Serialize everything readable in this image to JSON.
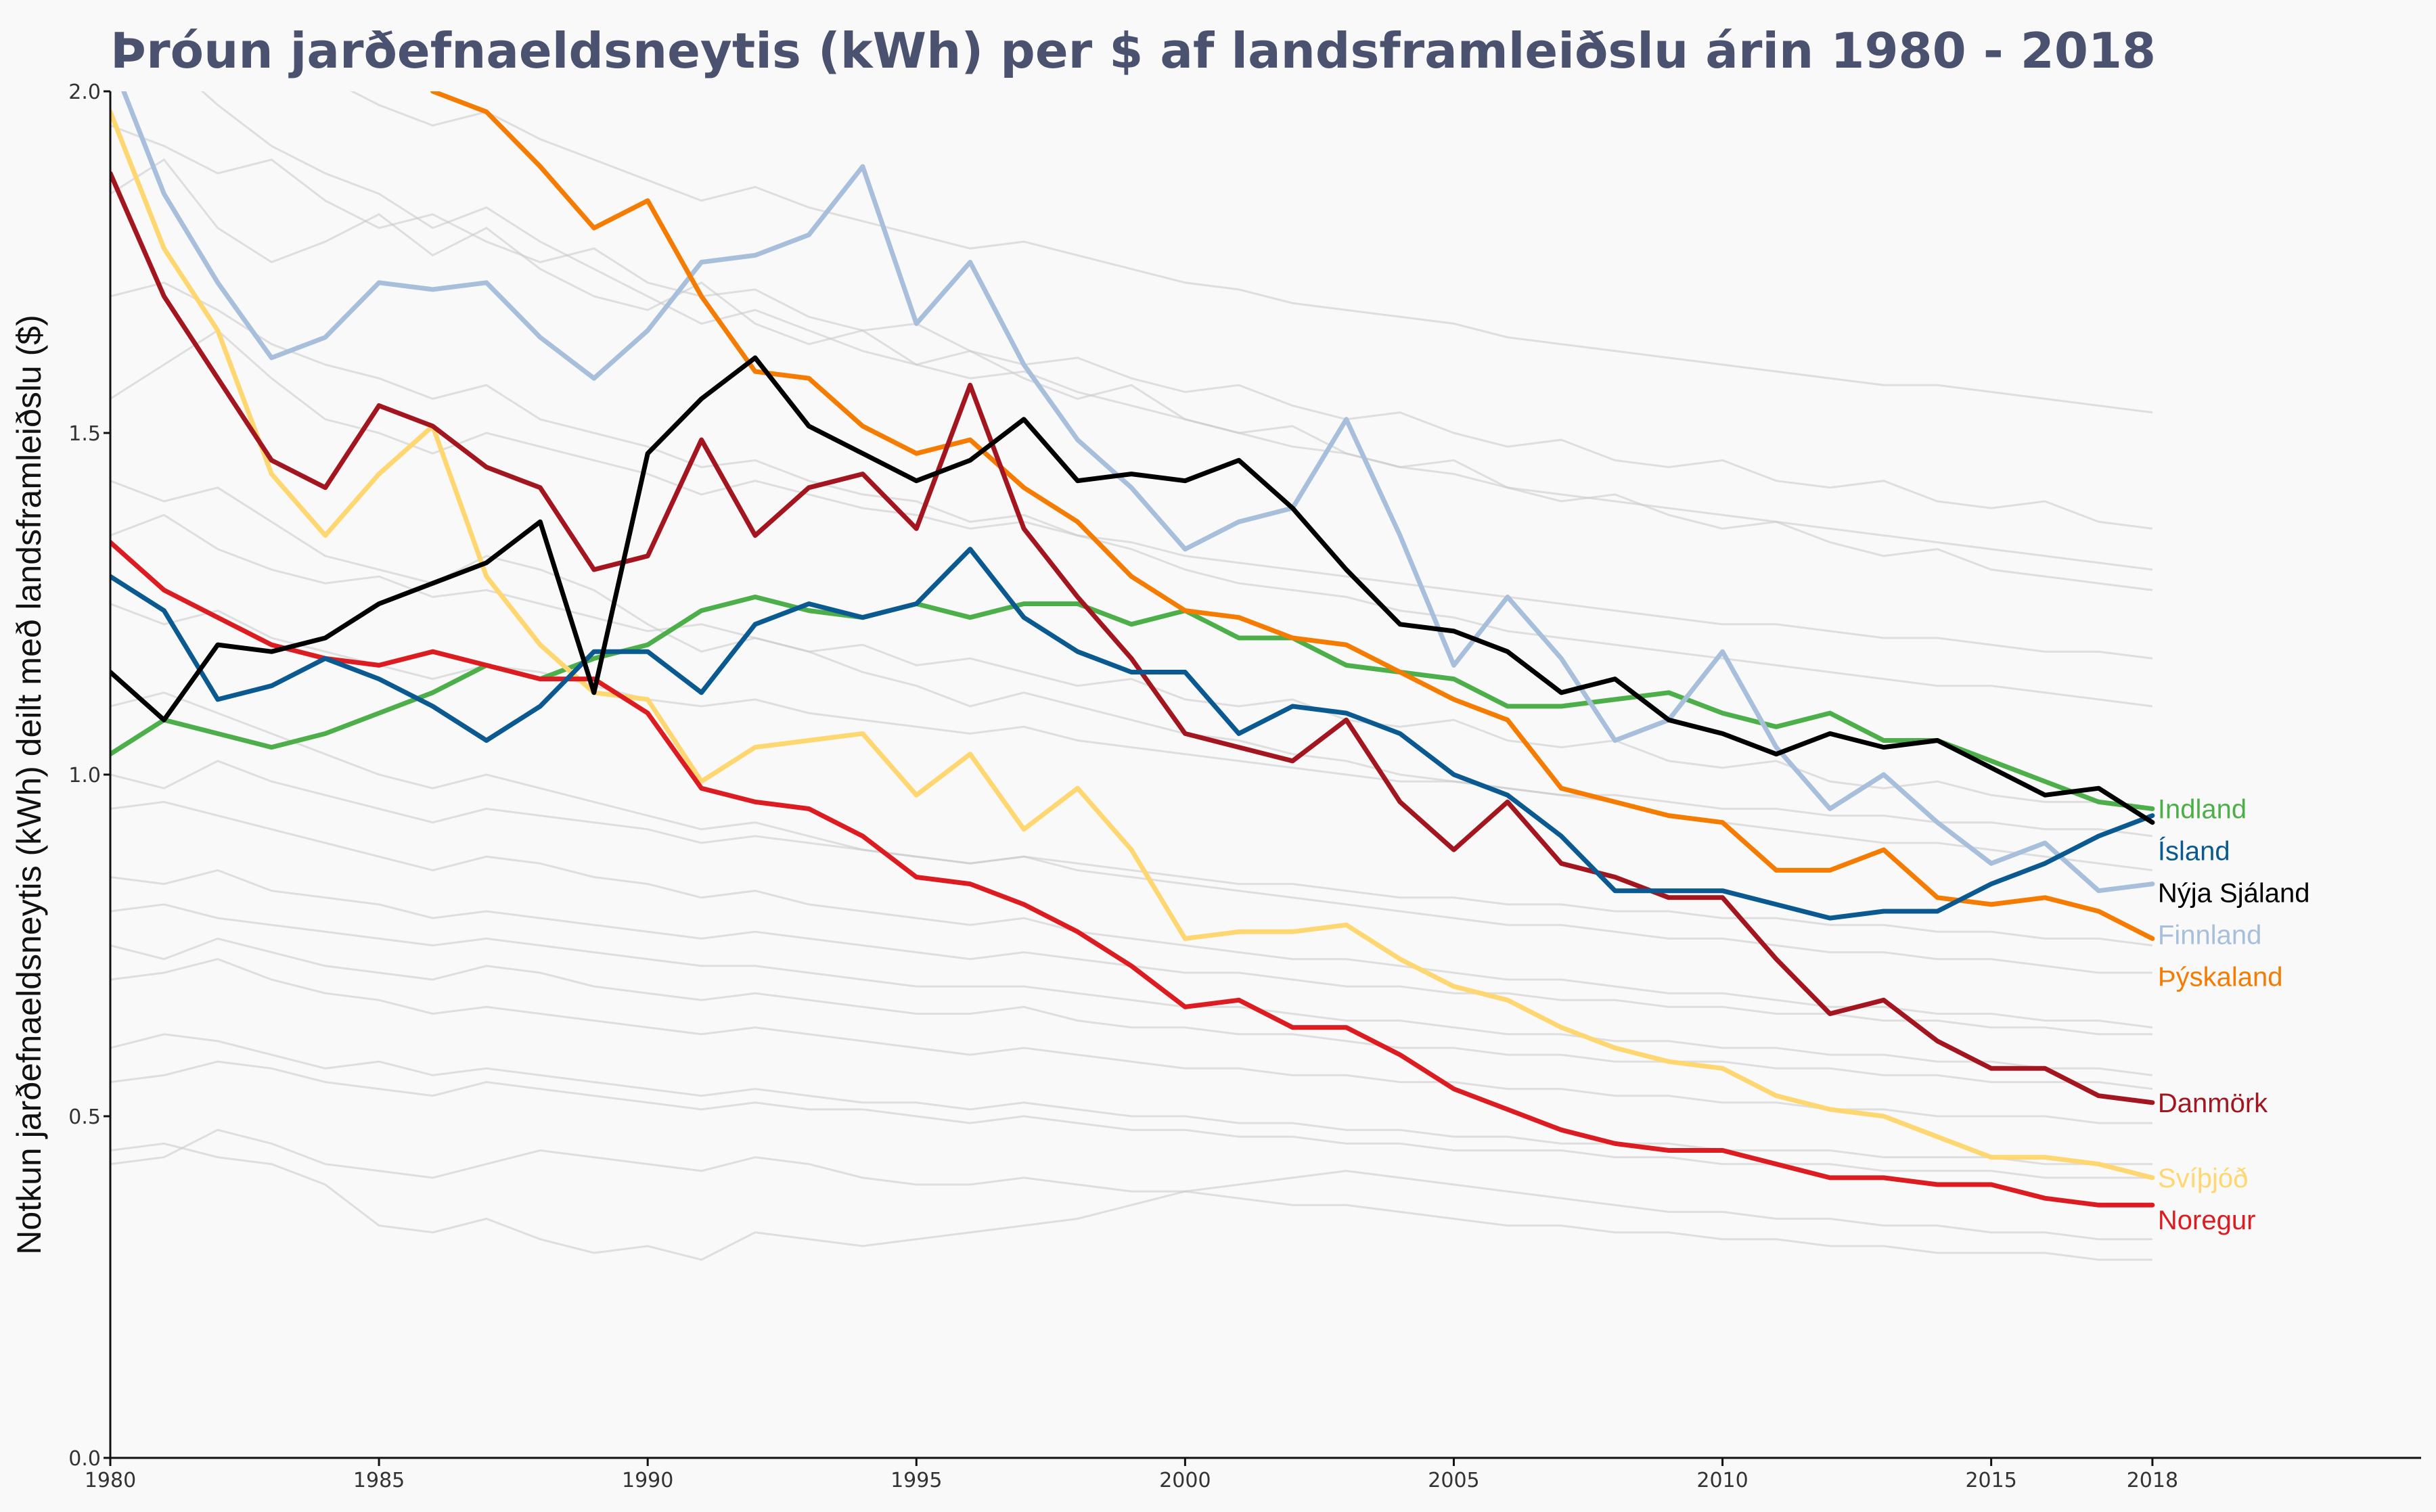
{
  "chart_data": {
    "type": "line",
    "title": "Þróun jarðefnaeldsneytis (kWh) per $ af landsframleiðslu árin 1980 - 2018",
    "ylabel": "Notkun jarðefnaeldsneytis (kWh) deilt með landsframleiðslu ($)",
    "xlabel": "",
    "xlim": [
      1980,
      2023
    ],
    "ylim": [
      0,
      2.0
    ],
    "x_ticks": [
      1980,
      1985,
      1990,
      1995,
      2000,
      2005,
      2010,
      2015,
      2018
    ],
    "y_ticks": [
      {
        "value": 0,
        "label": "0.0"
      },
      {
        "value": 0.5,
        "label": "0.5"
      },
      {
        "value": 1.0,
        "label": "1.0"
      },
      {
        "value": 1.5,
        "label": "1.5"
      },
      {
        "value": 2.0,
        "label": "2.0"
      }
    ],
    "grid": false,
    "x": [
      1980,
      1981,
      1982,
      1983,
      1984,
      1985,
      1986,
      1987,
      1988,
      1989,
      1990,
      1991,
      1992,
      1993,
      1994,
      1995,
      1996,
      1997,
      1998,
      1999,
      2000,
      2001,
      2002,
      2003,
      2004,
      2005,
      2006,
      2007,
      2008,
      2009,
      2010,
      2011,
      2012,
      2013,
      2014,
      2015,
      2016,
      2017,
      2018
    ],
    "series": [
      {
        "name": "Indland",
        "color": "#4daf4a",
        "values": [
          1.03,
          1.08,
          1.06,
          1.04,
          1.06,
          1.09,
          1.12,
          1.16,
          1.14,
          1.17,
          1.19,
          1.24,
          1.26,
          1.24,
          1.23,
          1.25,
          1.23,
          1.25,
          1.25,
          1.22,
          1.24,
          1.2,
          1.2,
          1.16,
          1.15,
          1.14,
          1.1,
          1.1,
          1.11,
          1.12,
          1.09,
          1.07,
          1.09,
          1.05,
          1.05,
          1.02,
          0.99,
          0.96,
          0.95
        ]
      },
      {
        "name": "Ísland",
        "color": "#0a5a91",
        "values": [
          1.29,
          1.24,
          1.11,
          1.13,
          1.17,
          1.14,
          1.1,
          1.05,
          1.1,
          1.18,
          1.18,
          1.12,
          1.22,
          1.25,
          1.23,
          1.25,
          1.33,
          1.23,
          1.18,
          1.15,
          1.15,
          1.06,
          1.1,
          1.09,
          1.06,
          1.0,
          0.97,
          0.91,
          0.83,
          0.83,
          0.83,
          0.81,
          0.79,
          0.8,
          0.8,
          0.84,
          0.87,
          0.91,
          0.94
        ]
      },
      {
        "name": "Nýja Sjáland",
        "color": "#000000",
        "values": [
          1.15,
          1.08,
          1.19,
          1.18,
          1.2,
          1.25,
          1.28,
          1.31,
          1.37,
          1.12,
          1.47,
          1.55,
          1.61,
          1.51,
          1.47,
          1.43,
          1.46,
          1.52,
          1.43,
          1.44,
          1.43,
          1.46,
          1.39,
          1.3,
          1.22,
          1.21,
          1.18,
          1.12,
          1.14,
          1.08,
          1.06,
          1.03,
          1.06,
          1.04,
          1.05,
          1.01,
          0.97,
          0.98,
          0.93
        ]
      },
      {
        "name": "Finnland",
        "color": "#a8bfdc",
        "values": [
          2.05,
          1.85,
          1.72,
          1.61,
          1.64,
          1.72,
          1.71,
          1.72,
          1.64,
          1.58,
          1.65,
          1.75,
          1.76,
          1.79,
          1.89,
          1.66,
          1.75,
          1.6,
          1.49,
          1.42,
          1.33,
          1.37,
          1.39,
          1.52,
          1.35,
          1.16,
          1.26,
          1.17,
          1.05,
          1.08,
          1.18,
          1.04,
          0.95,
          1.0,
          0.93,
          0.87,
          0.9,
          0.83,
          0.84
        ]
      },
      {
        "name": "Þýskaland",
        "color": "#f57c00",
        "values": [
          null,
          null,
          null,
          null,
          null,
          null,
          2.0,
          1.97,
          1.89,
          1.8,
          1.84,
          1.7,
          1.59,
          1.58,
          1.51,
          1.47,
          1.49,
          1.42,
          1.37,
          1.29,
          1.24,
          1.23,
          1.2,
          1.19,
          1.15,
          1.11,
          1.08,
          0.98,
          0.96,
          0.94,
          0.93,
          0.86,
          0.86,
          0.89,
          0.82,
          0.81,
          0.82,
          0.8,
          0.76
        ]
      },
      {
        "name": "Danmörk",
        "color": "#a3151f",
        "values": [
          1.88,
          1.7,
          1.58,
          1.46,
          1.42,
          1.54,
          1.51,
          1.45,
          1.42,
          1.3,
          1.32,
          1.49,
          1.35,
          1.42,
          1.44,
          1.36,
          1.57,
          1.36,
          1.26,
          1.17,
          1.06,
          1.04,
          1.02,
          1.08,
          0.96,
          0.89,
          0.96,
          0.87,
          0.85,
          0.82,
          0.82,
          0.73,
          0.65,
          0.67,
          0.61,
          0.57,
          0.57,
          0.53,
          0.52
        ]
      },
      {
        "name": "Svíþjóð",
        "color": "#ffd771",
        "values": [
          1.97,
          1.77,
          1.65,
          1.44,
          1.35,
          1.44,
          1.51,
          1.29,
          1.19,
          1.12,
          1.11,
          0.99,
          1.04,
          1.05,
          1.06,
          0.97,
          1.03,
          0.92,
          0.98,
          0.89,
          0.76,
          0.77,
          0.77,
          0.78,
          0.73,
          0.69,
          0.67,
          0.63,
          0.6,
          0.58,
          0.57,
          0.53,
          0.51,
          0.5,
          0.47,
          0.44,
          0.44,
          0.43,
          0.41
        ]
      },
      {
        "name": "Noregur",
        "color": "#dd1c22",
        "values": [
          1.34,
          1.27,
          1.23,
          1.19,
          1.17,
          1.16,
          1.18,
          1.16,
          1.14,
          1.14,
          1.09,
          0.98,
          0.96,
          0.95,
          0.91,
          0.85,
          0.84,
          0.81,
          0.77,
          0.72,
          0.66,
          0.67,
          0.63,
          0.63,
          0.59,
          0.54,
          0.51,
          0.48,
          0.46,
          0.45,
          0.45,
          0.43,
          0.41,
          0.41,
          0.4,
          0.4,
          0.38,
          0.37,
          0.37
        ]
      }
    ],
    "background_series": [
      [
        1.43,
        1.4,
        1.42,
        1.37,
        1.32,
        1.3,
        1.28,
        1.32,
        1.3,
        1.27,
        1.22,
        1.18,
        1.2,
        1.18,
        1.15,
        1.13,
        1.1,
        1.12,
        1.1,
        1.08,
        1.06,
        1.05,
        1.03,
        1.02,
        1.0,
        0.99,
        0.98,
        0.97,
        0.96,
        0.94,
        0.93,
        0.92,
        0.91,
        0.9,
        0.9,
        0.89,
        0.88,
        0.87,
        0.86
      ],
      [
        1.7,
        1.72,
        1.68,
        1.63,
        1.6,
        1.58,
        1.55,
        1.57,
        1.52,
        1.5,
        1.48,
        1.45,
        1.46,
        1.43,
        1.41,
        1.4,
        1.37,
        1.38,
        1.35,
        1.33,
        1.3,
        1.28,
        1.27,
        1.26,
        1.24,
        1.23,
        1.21,
        1.2,
        1.19,
        1.18,
        1.17,
        1.16,
        1.15,
        1.14,
        1.13,
        1.13,
        1.12,
        1.11,
        1.1
      ],
      [
        0.95,
        0.96,
        0.94,
        0.92,
        0.9,
        0.88,
        0.86,
        0.88,
        0.87,
        0.85,
        0.84,
        0.82,
        0.83,
        0.81,
        0.8,
        0.79,
        0.78,
        0.79,
        0.77,
        0.76,
        0.75,
        0.74,
        0.73,
        0.73,
        0.72,
        0.71,
        0.7,
        0.7,
        0.69,
        0.68,
        0.68,
        0.67,
        0.66,
        0.66,
        0.65,
        0.65,
        0.64,
        0.64,
        0.63
      ],
      [
        0.8,
        0.81,
        0.79,
        0.78,
        0.77,
        0.76,
        0.75,
        0.76,
        0.75,
        0.74,
        0.73,
        0.72,
        0.72,
        0.71,
        0.7,
        0.69,
        0.69,
        0.69,
        0.68,
        0.67,
        0.66,
        0.66,
        0.65,
        0.64,
        0.64,
        0.63,
        0.62,
        0.62,
        0.61,
        0.61,
        0.6,
        0.6,
        0.59,
        0.59,
        0.58,
        0.58,
        0.57,
        0.57,
        0.56
      ],
      [
        0.45,
        0.46,
        0.44,
        0.43,
        0.4,
        0.34,
        0.33,
        0.35,
        0.32,
        0.3,
        0.31,
        0.29,
        0.33,
        0.32,
        0.31,
        0.32,
        0.33,
        0.34,
        0.35,
        0.37,
        0.39,
        0.4,
        0.41,
        0.42,
        0.41,
        0.4,
        0.39,
        0.38,
        0.37,
        0.36,
        0.36,
        0.35,
        0.35,
        0.34,
        0.34,
        0.33,
        0.33,
        0.32,
        0.32
      ],
      [
        0.43,
        0.44,
        0.48,
        0.46,
        0.43,
        0.42,
        0.41,
        0.43,
        0.45,
        0.44,
        0.43,
        0.42,
        0.44,
        0.43,
        0.41,
        0.4,
        0.4,
        0.41,
        0.4,
        0.39,
        0.39,
        0.38,
        0.37,
        0.37,
        0.36,
        0.35,
        0.34,
        0.34,
        0.33,
        0.33,
        0.32,
        0.32,
        0.31,
        0.31,
        0.3,
        0.3,
        0.3,
        0.29,
        0.29
      ],
      [
        1.1,
        1.12,
        1.09,
        1.06,
        1.03,
        1.0,
        0.98,
        1.0,
        0.98,
        0.96,
        0.94,
        0.92,
        0.93,
        0.91,
        0.89,
        0.88,
        0.87,
        0.88,
        0.86,
        0.85,
        0.84,
        0.83,
        0.82,
        0.81,
        0.8,
        0.79,
        0.78,
        0.78,
        0.77,
        0.76,
        0.76,
        0.75,
        0.74,
        0.74,
        0.73,
        0.73,
        0.72,
        0.71,
        0.71
      ],
      [
        2.1,
        2.05,
        1.98,
        1.92,
        1.88,
        1.85,
        1.8,
        1.83,
        1.78,
        1.74,
        1.7,
        1.66,
        1.68,
        1.65,
        1.62,
        1.6,
        1.58,
        1.59,
        1.56,
        1.54,
        1.52,
        1.5,
        1.48,
        1.47,
        1.45,
        1.44,
        1.42,
        1.41,
        1.4,
        1.39,
        1.38,
        1.37,
        1.36,
        1.35,
        1.34,
        1.33,
        1.32,
        1.31,
        1.3
      ],
      [
        0.7,
        0.71,
        0.73,
        0.7,
        0.68,
        0.67,
        0.65,
        0.66,
        0.65,
        0.64,
        0.63,
        0.62,
        0.63,
        0.62,
        0.61,
        0.6,
        0.59,
        0.6,
        0.59,
        0.58,
        0.57,
        0.57,
        0.56,
        0.56,
        0.55,
        0.55,
        0.54,
        0.54,
        0.53,
        0.53,
        0.52,
        0.52,
        0.51,
        0.51,
        0.5,
        0.5,
        0.5,
        0.49,
        0.49
      ],
      [
        1.25,
        1.22,
        1.24,
        1.2,
        1.18,
        1.16,
        1.14,
        1.16,
        1.15,
        1.13,
        1.11,
        1.1,
        1.11,
        1.09,
        1.08,
        1.07,
        1.06,
        1.07,
        1.05,
        1.04,
        1.03,
        1.02,
        1.01,
        1.0,
        0.99,
        0.99,
        0.98,
        0.97,
        0.97,
        0.96,
        0.95,
        0.95,
        0.94,
        0.94,
        0.93,
        0.93,
        0.92,
        0.92,
        0.91
      ],
      [
        0.6,
        0.62,
        0.61,
        0.59,
        0.57,
        0.58,
        0.56,
        0.57,
        0.56,
        0.55,
        0.54,
        0.53,
        0.54,
        0.53,
        0.52,
        0.52,
        0.51,
        0.52,
        0.51,
        0.5,
        0.5,
        0.49,
        0.49,
        0.48,
        0.48,
        0.47,
        0.47,
        0.46,
        0.46,
        0.46,
        0.45,
        0.45,
        0.45,
        0.44,
        0.44,
        0.44,
        0.43,
        0.43,
        0.43
      ],
      [
        1.55,
        1.6,
        1.65,
        1.58,
        1.52,
        1.5,
        1.47,
        1.5,
        1.48,
        1.46,
        1.44,
        1.41,
        1.43,
        1.41,
        1.39,
        1.38,
        1.36,
        1.37,
        1.35,
        1.34,
        1.32,
        1.31,
        1.3,
        1.29,
        1.28,
        1.27,
        1.26,
        1.25,
        1.24,
        1.23,
        1.22,
        1.22,
        1.21,
        1.2,
        1.2,
        1.19,
        1.18,
        1.18,
        1.17
      ],
      [
        2.2,
        2.15,
        2.1,
        2.05,
        2.02,
        1.98,
        1.95,
        1.97,
        1.93,
        1.9,
        1.87,
        1.84,
        1.86,
        1.83,
        1.81,
        1.79,
        1.77,
        1.78,
        1.76,
        1.74,
        1.72,
        1.71,
        1.69,
        1.68,
        1.67,
        1.66,
        1.64,
        1.63,
        1.62,
        1.61,
        1.6,
        1.59,
        1.58,
        1.57,
        1.57,
        1.56,
        1.55,
        1.54,
        1.53
      ],
      [
        0.85,
        0.84,
        0.86,
        0.83,
        0.82,
        0.81,
        0.79,
        0.8,
        0.79,
        0.78,
        0.77,
        0.76,
        0.77,
        0.76,
        0.75,
        0.74,
        0.73,
        0.74,
        0.73,
        0.72,
        0.71,
        0.71,
        0.7,
        0.69,
        0.69,
        0.68,
        0.68,
        0.67,
        0.67,
        0.66,
        0.66,
        0.65,
        0.65,
        0.64,
        0.64,
        0.63,
        0.63,
        0.62,
        0.62
      ],
      [
        1.0,
        0.98,
        1.02,
        0.99,
        0.97,
        0.95,
        0.93,
        0.95,
        0.94,
        0.93,
        0.92,
        0.9,
        0.91,
        0.9,
        0.89,
        0.88,
        0.87,
        0.88,
        0.87,
        0.86,
        0.85,
        0.84,
        0.84,
        0.83,
        0.82,
        0.82,
        0.81,
        0.81,
        0.8,
        0.8,
        0.79,
        0.79,
        0.78,
        0.78,
        0.77,
        0.77,
        0.76,
        0.76,
        0.75
      ],
      [
        1.85,
        1.9,
        1.8,
        1.75,
        1.78,
        1.82,
        1.76,
        1.8,
        1.74,
        1.7,
        1.68,
        1.72,
        1.66,
        1.63,
        1.65,
        1.6,
        1.62,
        1.58,
        1.55,
        1.57,
        1.52,
        1.5,
        1.51,
        1.47,
        1.45,
        1.46,
        1.42,
        1.4,
        1.41,
        1.38,
        1.36,
        1.37,
        1.34,
        1.32,
        1.33,
        1.3,
        1.29,
        1.28,
        1.27
      ],
      [
        0.75,
        0.73,
        0.76,
        0.74,
        0.72,
        0.71,
        0.7,
        0.72,
        0.71,
        0.69,
        0.68,
        0.67,
        0.68,
        0.67,
        0.66,
        0.65,
        0.65,
        0.66,
        0.64,
        0.63,
        0.63,
        0.62,
        0.62,
        0.61,
        0.6,
        0.6,
        0.59,
        0.59,
        0.58,
        0.58,
        0.58,
        0.57,
        0.57,
        0.56,
        0.56,
        0.55,
        0.55,
        0.55,
        0.54
      ],
      [
        1.35,
        1.38,
        1.33,
        1.3,
        1.28,
        1.29,
        1.26,
        1.27,
        1.25,
        1.23,
        1.21,
        1.22,
        1.2,
        1.18,
        1.19,
        1.16,
        1.17,
        1.15,
        1.13,
        1.14,
        1.11,
        1.1,
        1.11,
        1.08,
        1.07,
        1.08,
        1.05,
        1.04,
        1.05,
        1.02,
        1.01,
        1.02,
        0.99,
        0.98,
        0.99,
        0.97,
        0.96,
        0.96,
        0.95
      ],
      [
        0.55,
        0.56,
        0.58,
        0.57,
        0.55,
        0.54,
        0.53,
        0.55,
        0.54,
        0.53,
        0.52,
        0.51,
        0.52,
        0.51,
        0.51,
        0.5,
        0.49,
        0.5,
        0.49,
        0.48,
        0.48,
        0.47,
        0.47,
        0.46,
        0.46,
        0.45,
        0.45,
        0.45,
        0.44,
        0.44,
        0.43,
        0.43,
        0.43,
        0.42,
        0.42,
        0.42,
        0.41,
        0.41,
        0.41
      ],
      [
        1.95,
        1.92,
        1.88,
        1.9,
        1.84,
        1.8,
        1.82,
        1.78,
        1.75,
        1.77,
        1.72,
        1.7,
        1.71,
        1.67,
        1.65,
        1.66,
        1.62,
        1.6,
        1.61,
        1.58,
        1.56,
        1.57,
        1.54,
        1.52,
        1.53,
        1.5,
        1.48,
        1.49,
        1.46,
        1.45,
        1.46,
        1.43,
        1.42,
        1.43,
        1.4,
        1.39,
        1.4,
        1.37,
        1.36
      ]
    ]
  }
}
